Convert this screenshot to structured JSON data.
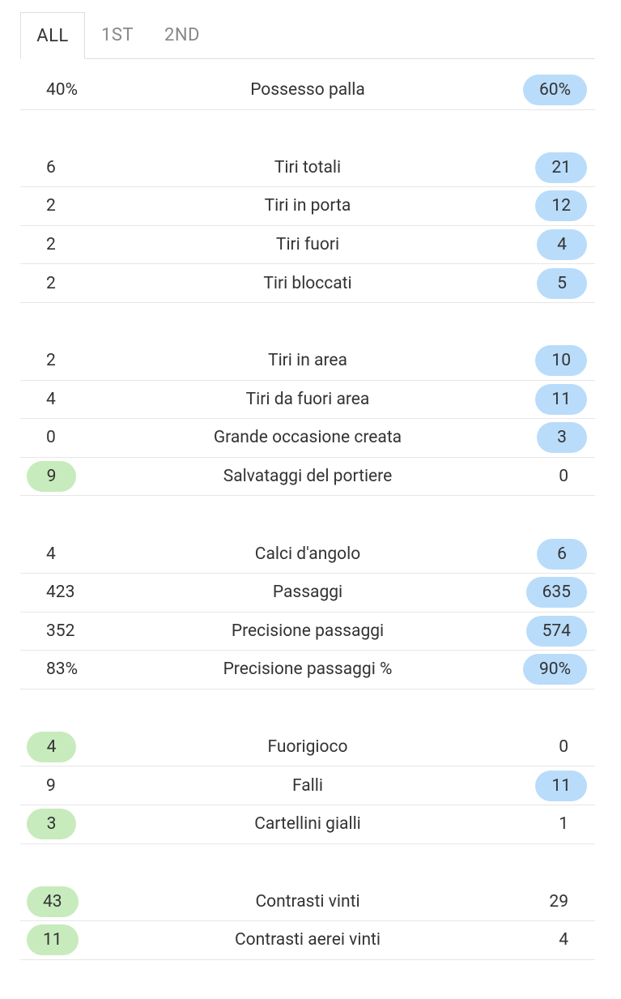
{
  "tabs": {
    "items": [
      "ALL",
      "1ST",
      "2ND"
    ],
    "active": 0
  },
  "groups": [
    {
      "rows": [
        {
          "home": "40%",
          "label": "Possesso palla",
          "away": "60%",
          "highlight": "away"
        }
      ]
    },
    {
      "rows": [
        {
          "home": "6",
          "label": "Tiri totali",
          "away": "21",
          "highlight": "away"
        },
        {
          "home": "2",
          "label": "Tiri in porta",
          "away": "12",
          "highlight": "away"
        },
        {
          "home": "2",
          "label": "Tiri fuori",
          "away": "4",
          "highlight": "away"
        },
        {
          "home": "2",
          "label": "Tiri bloccati",
          "away": "5",
          "highlight": "away"
        }
      ]
    },
    {
      "rows": [
        {
          "home": "2",
          "label": "Tiri in area",
          "away": "10",
          "highlight": "away"
        },
        {
          "home": "4",
          "label": "Tiri da fuori area",
          "away": "11",
          "highlight": "away"
        },
        {
          "home": "0",
          "label": "Grande occasione creata",
          "away": "3",
          "highlight": "away"
        },
        {
          "home": "9",
          "label": "Salvataggi del portiere",
          "away": "0",
          "highlight": "home"
        }
      ]
    },
    {
      "rows": [
        {
          "home": "4",
          "label": "Calci d'angolo",
          "away": "6",
          "highlight": "away"
        },
        {
          "home": "423",
          "label": "Passaggi",
          "away": "635",
          "highlight": "away"
        },
        {
          "home": "352",
          "label": "Precisione passaggi",
          "away": "574",
          "highlight": "away"
        },
        {
          "home": "83%",
          "label": "Precisione passaggi %",
          "away": "90%",
          "highlight": "away"
        }
      ]
    },
    {
      "rows": [
        {
          "home": "4",
          "label": "Fuorigioco",
          "away": "0",
          "highlight": "home"
        },
        {
          "home": "9",
          "label": "Falli",
          "away": "11",
          "highlight": "away"
        },
        {
          "home": "3",
          "label": "Cartellini gialli",
          "away": "1",
          "highlight": "home"
        }
      ]
    },
    {
      "rows": [
        {
          "home": "43",
          "label": "Contrasti vinti",
          "away": "29",
          "highlight": "home"
        },
        {
          "home": "11",
          "label": "Contrasti aerei vinti",
          "away": "4",
          "highlight": "home"
        }
      ]
    }
  ]
}
